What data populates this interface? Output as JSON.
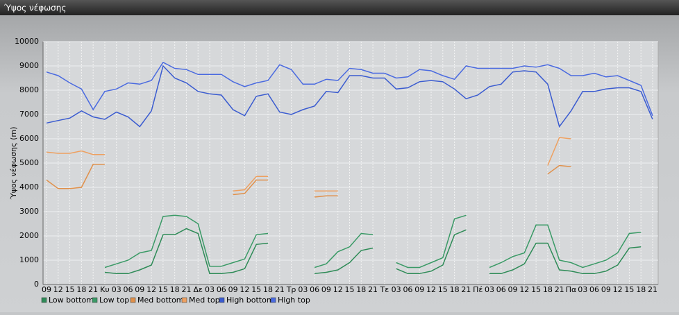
{
  "chart_data": {
    "type": "line",
    "title": "Ύψος νέφωσης",
    "y_label": "Ύψος νέφωσης (m)",
    "categories": [
      "09",
      "12",
      "15",
      "18",
      "21",
      "Κυ",
      "03",
      "06",
      "09",
      "12",
      "15",
      "18",
      "21",
      "Δε",
      "03",
      "06",
      "09",
      "12",
      "15",
      "18",
      "21",
      "Τρ",
      "03",
      "06",
      "09",
      "12",
      "15",
      "18",
      "21",
      "Τε",
      "03",
      "06",
      "09",
      "12",
      "15",
      "18",
      "21",
      "Πέ",
      "03",
      "06",
      "09",
      "12",
      "15",
      "18",
      "21",
      "Πα",
      "03",
      "06",
      "09",
      "12",
      "15",
      "18",
      "21"
    ],
    "ylim": [
      0,
      10000
    ],
    "yticks": [
      0,
      1000,
      2000,
      3000,
      4000,
      5000,
      6000,
      7000,
      8000,
      9000,
      10000
    ],
    "grid": true,
    "legend": "bottom",
    "series": [
      {
        "name": "Low bottom",
        "color": "#2e8b57",
        "values": [
          null,
          null,
          null,
          null,
          null,
          500,
          450,
          450,
          600,
          800,
          2050,
          2050,
          2300,
          2100,
          450,
          450,
          500,
          650,
          1650,
          1700,
          null,
          null,
          null,
          450,
          500,
          600,
          900,
          1400,
          1500,
          null,
          650,
          450,
          450,
          550,
          800,
          2050,
          2250,
          null,
          450,
          450,
          600,
          850,
          1700,
          1700,
          600,
          550,
          450,
          450,
          550,
          800,
          1500,
          1550,
          null
        ]
      },
      {
        "name": "Low top",
        "color": "#3a9a66",
        "values": [
          null,
          null,
          null,
          null,
          null,
          700,
          850,
          1000,
          1300,
          1400,
          2800,
          2850,
          2800,
          2500,
          750,
          750,
          900,
          1050,
          2050,
          2100,
          null,
          null,
          null,
          700,
          850,
          1350,
          1550,
          2100,
          2050,
          null,
          900,
          700,
          700,
          900,
          1100,
          2700,
          2850,
          null,
          700,
          900,
          1150,
          1300,
          2450,
          2450,
          1000,
          900,
          700,
          850,
          1000,
          1300,
          2100,
          2150,
          null
        ]
      },
      {
        "name": "Med bottom",
        "color": "#e0904a",
        "values": [
          4300,
          3950,
          3950,
          4000,
          4950,
          4950,
          null,
          null,
          null,
          null,
          null,
          null,
          null,
          null,
          null,
          null,
          3700,
          3750,
          4300,
          4300,
          null,
          null,
          null,
          3600,
          3650,
          3650,
          null,
          null,
          null,
          null,
          null,
          null,
          null,
          null,
          null,
          null,
          null,
          null,
          null,
          null,
          null,
          null,
          null,
          4550,
          4900,
          4850,
          null,
          null,
          null,
          null,
          null,
          null,
          null
        ]
      },
      {
        "name": "Med top",
        "color": "#eea060",
        "values": [
          5450,
          5400,
          5400,
          5500,
          5350,
          5350,
          null,
          null,
          null,
          null,
          null,
          null,
          null,
          null,
          null,
          null,
          3850,
          3900,
          4450,
          4450,
          null,
          null,
          null,
          3850,
          3850,
          3850,
          null,
          null,
          null,
          null,
          null,
          null,
          null,
          null,
          null,
          null,
          null,
          null,
          null,
          null,
          null,
          null,
          null,
          4900,
          6050,
          6000,
          null,
          null,
          null,
          null,
          null,
          null,
          null
        ]
      },
      {
        "name": "High bottom",
        "color": "#3a5bd0",
        "values": [
          6650,
          6750,
          6850,
          7150,
          6900,
          6800,
          7100,
          6900,
          6500,
          7150,
          9000,
          8500,
          8300,
          7950,
          7850,
          7800,
          7200,
          6950,
          7750,
          7850,
          7100,
          7000,
          7200,
          7350,
          7950,
          7900,
          8600,
          8600,
          8500,
          8500,
          8050,
          8100,
          8350,
          8400,
          8350,
          8050,
          7650,
          7800,
          8150,
          8250,
          8750,
          8800,
          8750,
          8250,
          6500,
          7150,
          7950,
          7950,
          8050,
          8100,
          8100,
          7950,
          6800
        ]
      },
      {
        "name": "High top",
        "color": "#4a6ae0",
        "values": [
          8750,
          8600,
          8300,
          8050,
          7200,
          7950,
          8050,
          8300,
          8250,
          8400,
          9150,
          8900,
          8850,
          8650,
          8650,
          8650,
          8350,
          8150,
          8300,
          8400,
          9050,
          8850,
          8250,
          8250,
          8450,
          8400,
          8900,
          8850,
          8700,
          8700,
          8500,
          8550,
          8850,
          8800,
          8600,
          8450,
          9000,
          8900,
          8900,
          8900,
          8900,
          9000,
          8950,
          9050,
          8900,
          8600,
          8600,
          8700,
          8550,
          8600,
          8400,
          8200,
          6950
        ]
      }
    ]
  }
}
